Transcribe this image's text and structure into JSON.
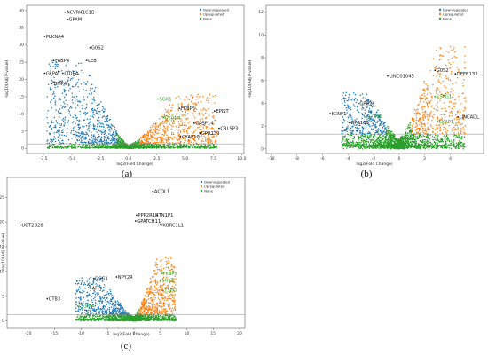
{
  "chart_data": [
    {
      "type": "scatter",
      "panel_label": "(a)",
      "xlabel": "log2(Fold Change)",
      "ylabel": "-log10(Adj P-value)",
      "xlim": [
        -9,
        10.2
      ],
      "ylim": [
        -1.5,
        41.5
      ],
      "xticks": [
        "-7.5",
        "-5.0",
        "-2.5",
        "0.0",
        "2.5",
        "5.0",
        "7.5",
        "10.0"
      ],
      "xtick_values": [
        -7.5,
        -5,
        -2.5,
        0,
        2.5,
        5,
        7.5,
        10
      ],
      "yticks": [
        "0",
        "5",
        "10",
        "15",
        "20",
        "25",
        "30",
        "35",
        "40"
      ],
      "ytick_values": [
        0,
        5,
        10,
        15,
        20,
        25,
        30,
        35,
        40
      ],
      "threshold_y": 1.3,
      "fc_cutoff": 1,
      "legend": [
        "Downregulated",
        "Upregulated",
        "None"
      ],
      "legend_position": "top-right",
      "down_extent": {
        "xmin": -7.2,
        "ymax": 25
      },
      "up_extent": {
        "xmax": 7.8,
        "ymax": 15
      },
      "labels": [
        {
          "text": "ACVRIC",
          "x": -5.6,
          "y": 39.5,
          "color": "black"
        },
        {
          "text": "1C1B",
          "x": -4.2,
          "y": 39.5,
          "color": "black"
        },
        {
          "text": "GPAM",
          "x": -5.4,
          "y": 37.5,
          "color": "black"
        },
        {
          "text": "PLKNA4",
          "x": -7.4,
          "y": 32.5,
          "color": "black"
        },
        {
          "text": "G0S2",
          "x": -3.4,
          "y": 29.2,
          "color": "black"
        },
        {
          "text": "FABP4",
          "x": -6.6,
          "y": 25.5,
          "color": "black"
        },
        {
          "text": "LEB",
          "x": -3.7,
          "y": 25.5,
          "color": "black"
        },
        {
          "text": "GLPAT",
          "x": -7.4,
          "y": 21.8,
          "color": "black"
        },
        {
          "text": "CIDEA",
          "x": -5.8,
          "y": 21.8,
          "color": "black"
        },
        {
          "text": "TIMP4",
          "x": -6.8,
          "y": 18.8,
          "color": "black"
        },
        {
          "text": "SGK1",
          "x": 2.6,
          "y": 14.3,
          "color": "green"
        },
        {
          "text": "FKBP5",
          "x": 4.5,
          "y": 11.6,
          "color": "black"
        },
        {
          "text": "EPIST",
          "x": 7.6,
          "y": 10.8,
          "color": "black"
        },
        {
          "text": "CLDN4",
          "x": 3.1,
          "y": 8.9,
          "color": "green"
        },
        {
          "text": "CASP14",
          "x": 5.8,
          "y": 7.3,
          "color": "black"
        },
        {
          "text": "CRLSP3",
          "x": 8.0,
          "y": 5.8,
          "color": "black"
        },
        {
          "text": "GPR139",
          "x": 6.3,
          "y": 4.4,
          "color": "black"
        },
        {
          "text": "CYA810",
          "x": 4.6,
          "y": 3.4,
          "color": "black"
        }
      ]
    },
    {
      "type": "scatter",
      "panel_label": "(b)",
      "xlabel": "log2(Fold Change)",
      "ylabel": "-log10(Adj P-value)",
      "xlim": [
        -10.4,
        6.6
      ],
      "ylim": [
        -0.4,
        12.6
      ],
      "xticks": [
        "-10",
        "-8",
        "-6",
        "-4",
        "-2",
        "0",
        "2",
        "4"
      ],
      "xtick_values": [
        -10,
        -8,
        -6,
        -4,
        -2,
        0,
        2,
        4
      ],
      "yticks": [
        "0",
        "2",
        "4",
        "6",
        "8",
        "10",
        "12"
      ],
      "ytick_values": [
        0,
        2,
        4,
        6,
        8,
        10,
        12
      ],
      "threshold_y": 1.3,
      "fc_cutoff": 1,
      "legend": [
        "Downregulated",
        "Upregulated",
        "None"
      ],
      "legend_position": "top-right",
      "down_extent": {
        "xmin": -4.5,
        "ymax": 4.2
      },
      "up_extent": {
        "xmax": 5.2,
        "ymax": 8.2
      },
      "labels": [
        {
          "text": "G0S2",
          "x": 2.8,
          "y": 6.9,
          "color": "black"
        },
        {
          "text": "DEFB132",
          "x": 4.4,
          "y": 6.6,
          "color": "black"
        },
        {
          "text": "LINC01043",
          "x": -0.9,
          "y": 6.4,
          "color": "black"
        },
        {
          "text": "CSPG1",
          "x": 2.8,
          "y": 4.6,
          "color": "green"
        },
        {
          "text": "GPR26",
          "x": -3.2,
          "y": 4.0,
          "color": "black"
        },
        {
          "text": "KCNF1",
          "x": -5.4,
          "y": 3.1,
          "color": "black"
        },
        {
          "text": "LINCADL",
          "x": 4.6,
          "y": 2.8,
          "color": "black"
        },
        {
          "text": "CLDN4",
          "x": -2.7,
          "y": 2.8,
          "color": "green"
        },
        {
          "text": "GPR139",
          "x": -3.9,
          "y": 2.3,
          "color": "black"
        },
        {
          "text": "SKAP1",
          "x": 3.0,
          "y": 2.4,
          "color": "green"
        }
      ]
    },
    {
      "type": "scatter",
      "panel_label": "(c)",
      "xlabel": "log2(Fold Change)",
      "ylabel": "-log10(Adj P-value)",
      "xlim": [
        -24,
        21
      ],
      "ylim": [
        -1.5,
        29
      ],
      "xticks": [
        "-20",
        "-15",
        "-10",
        "-5",
        "0",
        "5",
        "10",
        "15",
        "20"
      ],
      "xtick_values": [
        -20,
        -15,
        -10,
        -5,
        0,
        5,
        10,
        15,
        20
      ],
      "yticks": [
        "0",
        "5",
        "10",
        "15",
        "20",
        "25"
      ],
      "ytick_values": [
        0,
        5,
        10,
        15,
        20,
        25
      ],
      "threshold_y": 1.3,
      "fc_cutoff": 1,
      "legend": [
        "Downregulated",
        "Upregulated",
        "None"
      ],
      "legend_position": "top-right",
      "down_extent": {
        "xmin": -11,
        "ymax": 8
      },
      "up_extent": {
        "xmax": 8,
        "ymax": 12
      },
      "labels": [
        {
          "text": "ACOL1",
          "x": 3.6,
          "y": 26.2,
          "color": "black"
        },
        {
          "text": "PPP2R1B",
          "x": 0.5,
          "y": 21.4,
          "color": "black"
        },
        {
          "text": "TN1P1",
          "x": 4.4,
          "y": 21.4,
          "color": "black"
        },
        {
          "text": "GPATCH11",
          "x": 0.3,
          "y": 20.2,
          "color": "black"
        },
        {
          "text": "VKORC1L1",
          "x": 4.6,
          "y": 19.4,
          "color": "black"
        },
        {
          "text": "UGT2B28",
          "x": -21.5,
          "y": 19.4,
          "color": "black"
        },
        {
          "text": "FKBP5",
          "x": 5.2,
          "y": 9.6,
          "color": "green"
        },
        {
          "text": "NPY2R",
          "x": -3.3,
          "y": 8.9,
          "color": "black"
        },
        {
          "text": "DSG1",
          "x": -7.6,
          "y": 8.6,
          "color": "black"
        },
        {
          "text": "SGK1",
          "x": 5.0,
          "y": 8.2,
          "color": "green"
        },
        {
          "text": "AFPr",
          "x": -8.2,
          "y": 6.6,
          "color": "black"
        },
        {
          "text": "TSPO",
          "x": 5.5,
          "y": 6.2,
          "color": "green"
        },
        {
          "text": "CT83",
          "x": -16.4,
          "y": 4.5,
          "color": "black"
        },
        {
          "text": "CLDN4",
          "x": -10.6,
          "y": 3.0,
          "color": "green"
        }
      ]
    }
  ],
  "colors": {
    "downregulated": "#1f77b4",
    "upregulated": "#ff7f0e",
    "none": "#2ca02c",
    "threshold": "#8a8a8a",
    "axis": "#333333"
  }
}
